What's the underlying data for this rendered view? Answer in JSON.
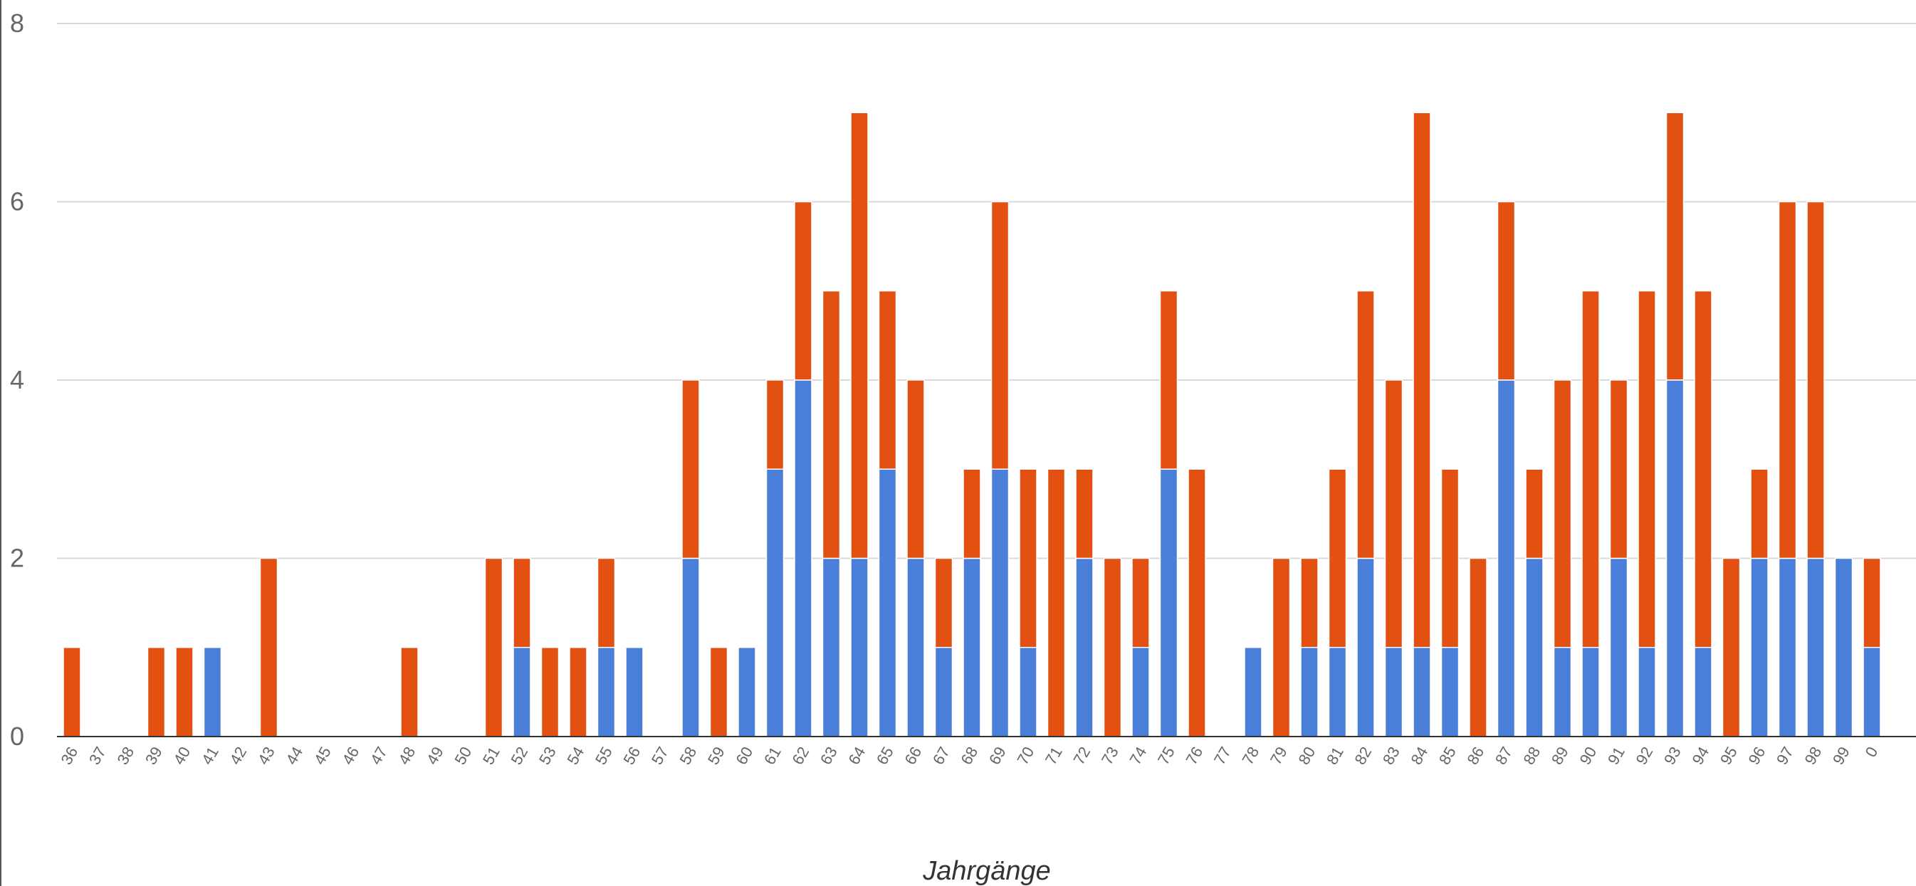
{
  "colors": {
    "blue": "#4a7fd9",
    "orange": "#e25012",
    "grid": "#d9d9d9",
    "axis": "#333333",
    "tick_text": "#666666",
    "frame": "#555555"
  },
  "chart_data": {
    "type": "bar",
    "stacked": true,
    "title": "",
    "xlabel": "Jahrgänge",
    "ylabel": "",
    "ylim": [
      0,
      8
    ],
    "yticks": [
      "0",
      "2",
      "4",
      "6",
      "8"
    ],
    "grid": true,
    "legend": "none",
    "categories": [
      "36",
      "37",
      "38",
      "39",
      "40",
      "41",
      "42",
      "43",
      "44",
      "45",
      "46",
      "47",
      "48",
      "49",
      "50",
      "51",
      "52",
      "53",
      "54",
      "55",
      "56",
      "57",
      "58",
      "59",
      "60",
      "61",
      "62",
      "63",
      "64",
      "65",
      "66",
      "67",
      "68",
      "69",
      "70",
      "71",
      "72",
      "73",
      "74",
      "75",
      "76",
      "77",
      "78",
      "79",
      "80",
      "81",
      "82",
      "83",
      "84",
      "85",
      "86",
      "87",
      "88",
      "89",
      "90",
      "91",
      "92",
      "93",
      "94",
      "95",
      "96",
      "97",
      "98",
      "99",
      "0"
    ],
    "series": [
      {
        "color": "#4a7fd9",
        "values": [
          0,
          0,
          0,
          0,
          0,
          1,
          0,
          0,
          0,
          0,
          0,
          0,
          0,
          0,
          0,
          0,
          1,
          0,
          0,
          1,
          1,
          0,
          2,
          0,
          1,
          3,
          4,
          2,
          2,
          3,
          2,
          1,
          2,
          3,
          1,
          0,
          2,
          0,
          1,
          3,
          0,
          0,
          1,
          0,
          1,
          1,
          2,
          1,
          1,
          1,
          0,
          4,
          2,
          1,
          1,
          2,
          1,
          4,
          1,
          0,
          2,
          2,
          2,
          2,
          1
        ]
      },
      {
        "color": "#e25012",
        "values": [
          1,
          0,
          0,
          1,
          1,
          0,
          0,
          2,
          0,
          0,
          0,
          0,
          1,
          0,
          0,
          2,
          1,
          1,
          1,
          1,
          0,
          0,
          2,
          1,
          0,
          1,
          2,
          3,
          5,
          2,
          2,
          1,
          1,
          3,
          2,
          3,
          1,
          2,
          1,
          2,
          3,
          0,
          0,
          2,
          1,
          2,
          3,
          3,
          6,
          2,
          2,
          2,
          1,
          3,
          4,
          2,
          4,
          3,
          4,
          2,
          1,
          4,
          4,
          0,
          1
        ]
      }
    ]
  }
}
